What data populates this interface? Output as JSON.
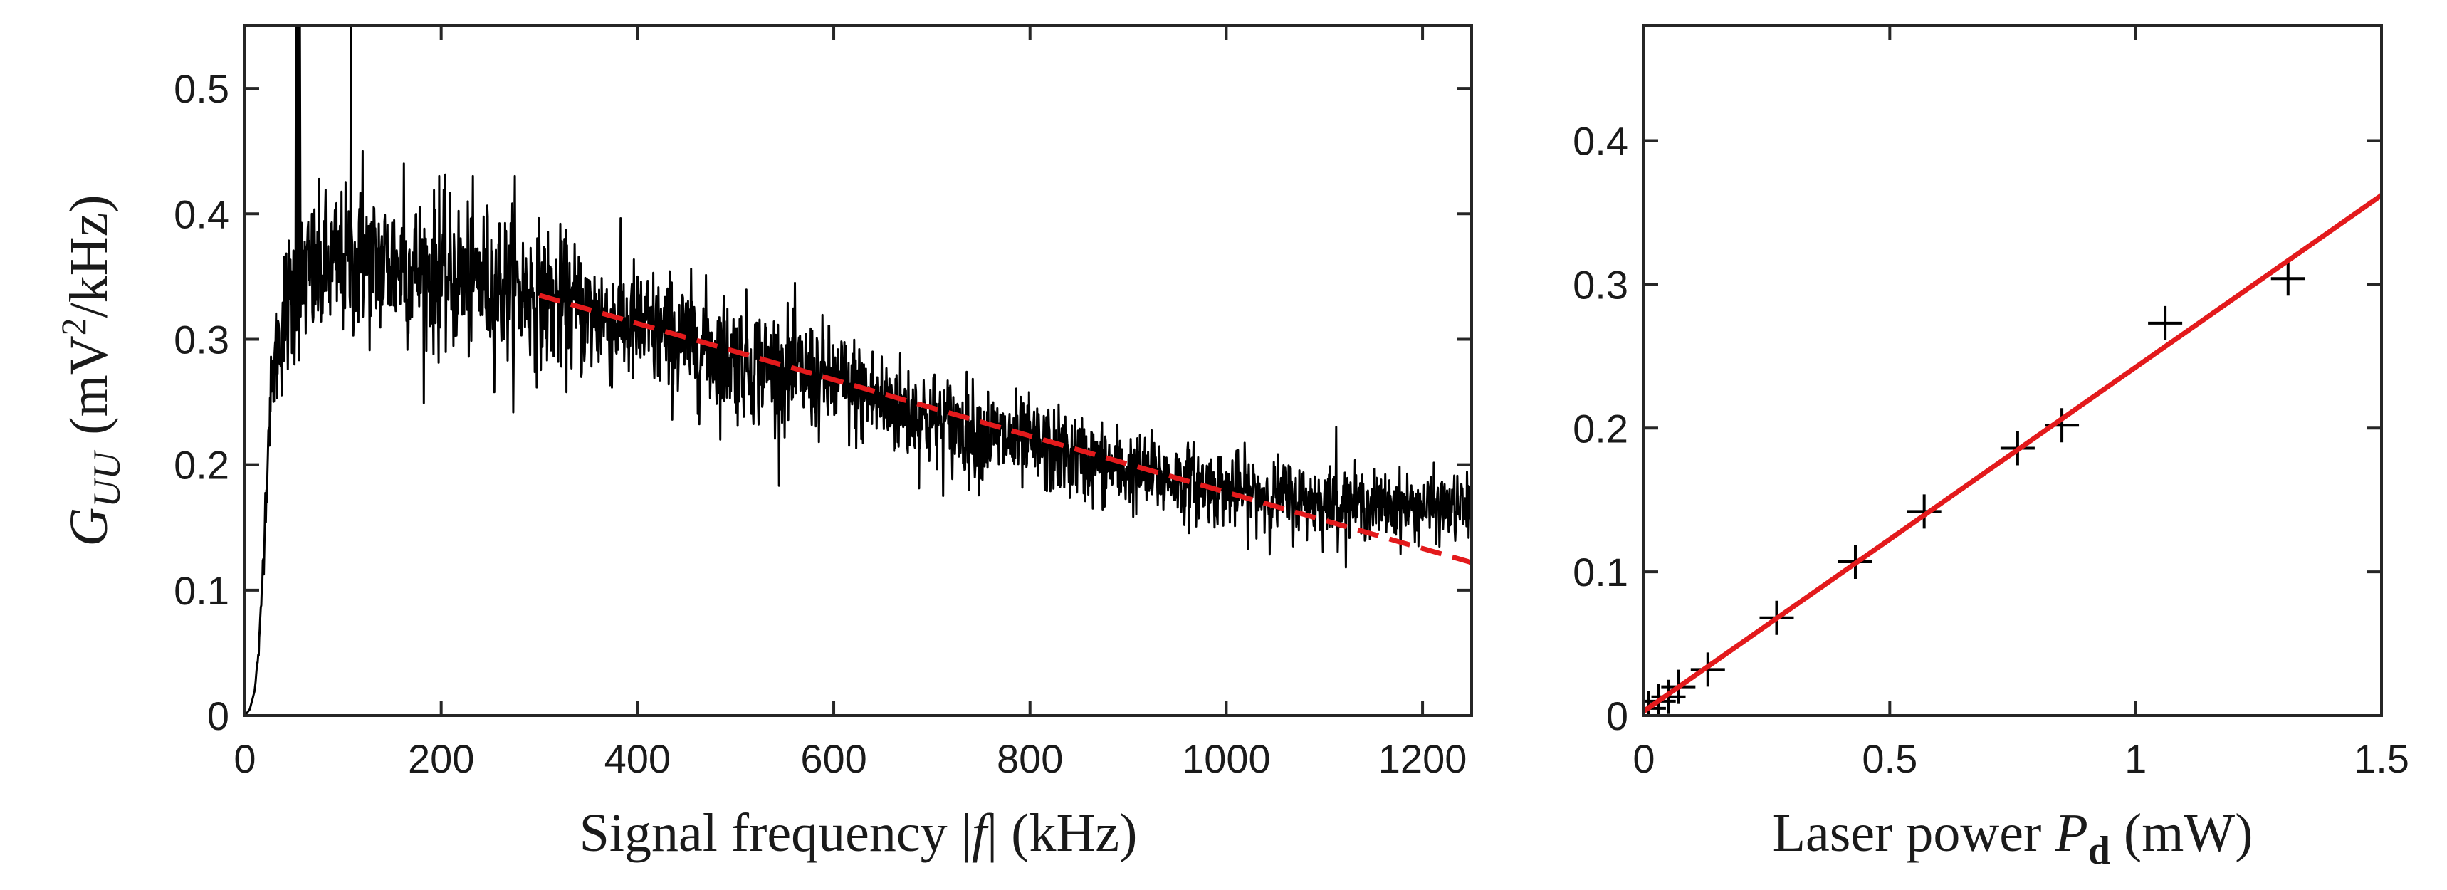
{
  "chart_data": [
    {
      "type": "line",
      "panel": "left",
      "xlabel": "Signal frequency |f| (kHz)",
      "xlabel_parts": {
        "prefix": "Signal frequency |",
        "var": "f",
        "suffix": "| (kHz)"
      },
      "ylabel": "G_UU (mV²/kHz)",
      "ylabel_parts": {
        "var": "G",
        "sub": "UU",
        "unit_open": "(mV",
        "sup": "2",
        "unit_close": "/kHz)"
      },
      "xlim": [
        0,
        1250
      ],
      "ylim": [
        0,
        0.55
      ],
      "xticks": [
        0,
        200,
        400,
        600,
        800,
        1000,
        1200
      ],
      "xtick_labels": [
        "0",
        "200",
        "400",
        "600",
        "800",
        "1000",
        "1200"
      ],
      "yticks": [
        0,
        0.1,
        0.2,
        0.3,
        0.4,
        0.5
      ],
      "ytick_labels": [
        "0",
        "0.1",
        "0.2",
        "0.3",
        "0.4",
        "0.5"
      ],
      "series": [
        {
          "name": "measured spectrum",
          "color": "#000000",
          "style": "solid",
          "x": [
            0,
            5,
            10,
            15,
            20,
            25,
            30,
            35,
            40,
            45,
            50,
            55,
            60,
            70,
            80,
            100,
            150,
            200,
            250,
            300,
            350,
            400,
            500,
            600,
            700,
            800,
            900,
            1000,
            1050,
            1100,
            1150,
            1200,
            1250
          ],
          "y": [
            0.0,
            0.005,
            0.02,
            0.06,
            0.15,
            0.24,
            0.28,
            0.3,
            0.32,
            0.33,
            0.34,
            0.345,
            0.35,
            0.35,
            0.355,
            0.36,
            0.36,
            0.35,
            0.345,
            0.335,
            0.32,
            0.31,
            0.285,
            0.265,
            0.235,
            0.215,
            0.195,
            0.18,
            0.175,
            0.17,
            0.168,
            0.166,
            0.165
          ],
          "noise_sd": [
            0,
            0,
            0,
            0.005,
            0.01,
            0.015,
            0.02,
            0.025,
            0.03,
            0.03,
            0.03,
            0.03,
            0.03,
            0.03,
            0.03,
            0.03,
            0.03,
            0.03,
            0.03,
            0.028,
            0.026,
            0.025,
            0.024,
            0.022,
            0.02,
            0.018,
            0.016,
            0.015,
            0.015,
            0.014,
            0.013,
            0.013,
            0.013
          ],
          "spikes": [
            {
              "x": 52,
              "y": 0.55
            },
            {
              "x": 54,
              "y": 0.55
            },
            {
              "x": 56,
              "y": 0.55
            },
            {
              "x": 108,
              "y": 0.55
            },
            {
              "x": 120,
              "y": 0.45
            },
            {
              "x": 162,
              "y": 0.44
            },
            {
              "x": 198,
              "y": 0.43
            },
            {
              "x": 275,
              "y": 0.43
            },
            {
              "x": 1112,
              "y": 0.23
            }
          ]
        },
        {
          "name": "fit",
          "color": "#e31a1c",
          "style": "dashed",
          "x": [
            300,
            1250
          ],
          "y": [
            0.335,
            0.122
          ]
        }
      ]
    },
    {
      "type": "scatter",
      "panel": "right",
      "xlabel": "Laser power P_d (mW)",
      "xlabel_parts": {
        "prefix": "Laser power ",
        "var": "P",
        "sub": "d",
        "suffix": " (mW)"
      },
      "ylabel": "",
      "xlim": [
        0,
        1.5
      ],
      "ylim": [
        0,
        0.48
      ],
      "xticks": [
        0,
        0.5,
        1,
        1.5
      ],
      "xtick_labels": [
        "0",
        "0.5",
        "1",
        "1.5"
      ],
      "yticks": [
        0,
        0.1,
        0.2,
        0.3,
        0.4
      ],
      "ytick_labels": [
        "0",
        "0.1",
        "0.2",
        "0.3",
        "0.4"
      ],
      "series": [
        {
          "name": "measurements",
          "marker": "+",
          "color": "#000000",
          "x": [
            0.01,
            0.03,
            0.05,
            0.07,
            0.13,
            0.27,
            0.43,
            0.57,
            0.76,
            0.85,
            1.06,
            1.31
          ],
          "y": [
            0.005,
            0.01,
            0.013,
            0.02,
            0.032,
            0.068,
            0.107,
            0.142,
            0.186,
            0.202,
            0.273,
            0.304
          ]
        },
        {
          "name": "linear fit",
          "color": "#e31a1c",
          "style": "solid",
          "x": [
            0,
            1.5
          ],
          "y": [
            0.003,
            0.362
          ]
        }
      ]
    }
  ]
}
